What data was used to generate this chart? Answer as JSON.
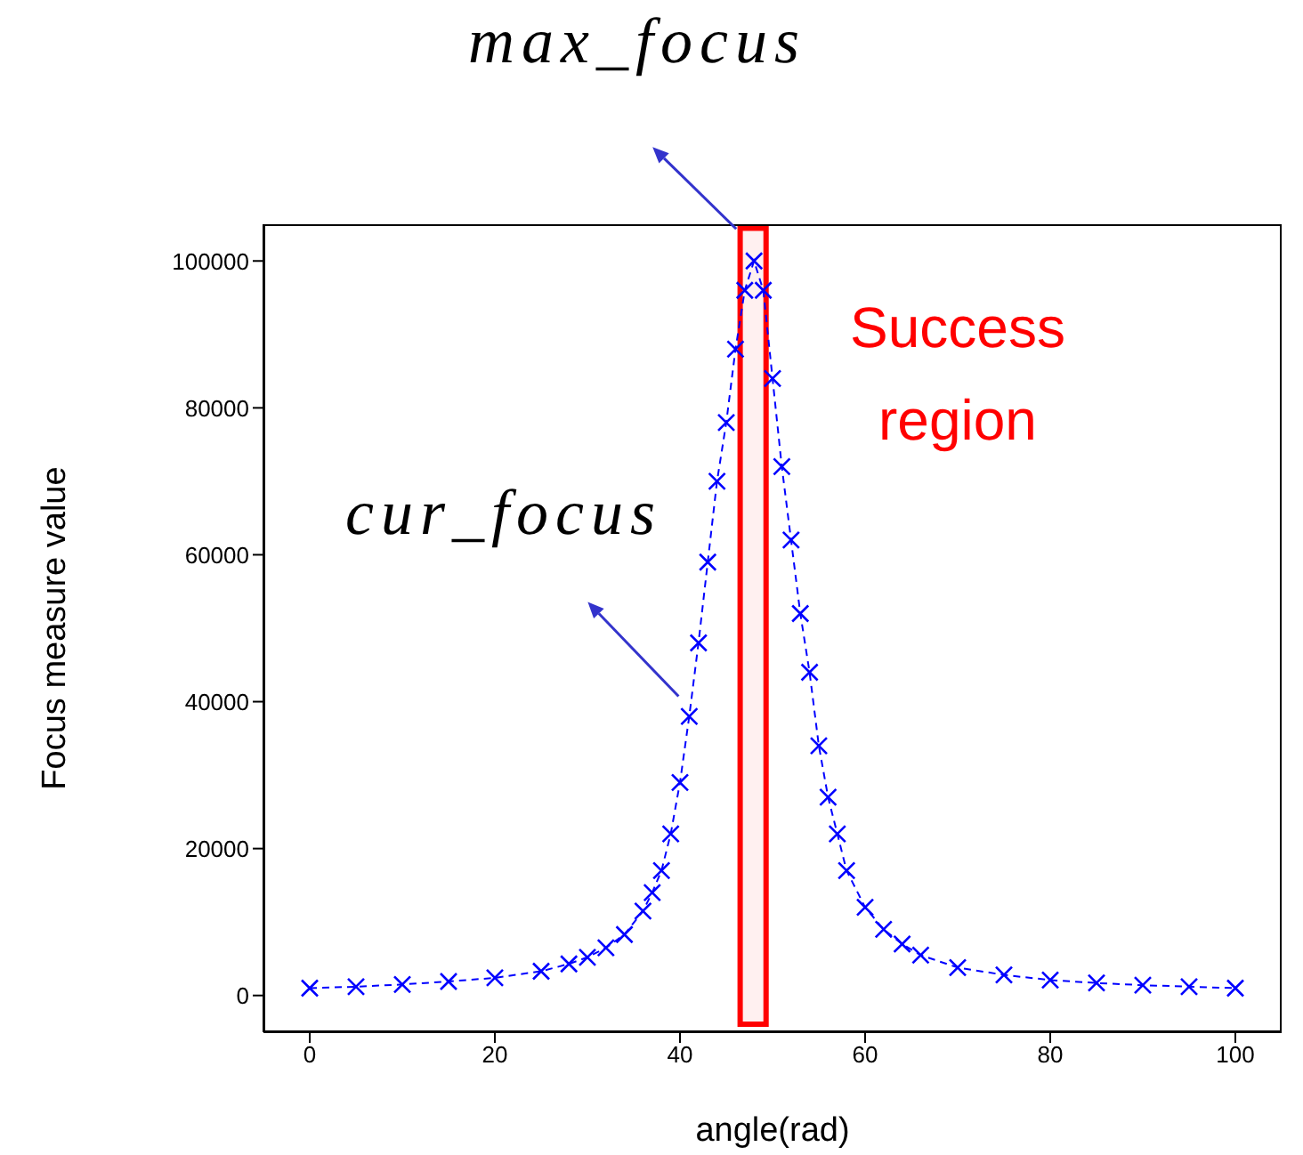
{
  "chart_data": {
    "type": "line",
    "xlabel": "angle(rad)",
    "ylabel": "Focus measure value",
    "x": [
      0,
      5,
      10,
      15,
      20,
      25,
      28,
      30,
      32,
      34,
      36,
      37,
      38,
      39,
      40,
      41,
      42,
      43,
      44,
      45,
      46,
      47,
      48,
      49,
      50,
      51,
      52,
      53,
      54,
      55,
      56,
      57,
      58,
      60,
      62,
      64,
      66,
      70,
      75,
      80,
      85,
      90,
      95,
      100
    ],
    "series": [
      {
        "color": "#0000ff",
        "values": [
          1000,
          1200,
          1500,
          1900,
          2400,
          3300,
          4300,
          5200,
          6500,
          8300,
          11500,
          14000,
          17000,
          22000,
          29000,
          38000,
          48000,
          59000,
          70000,
          78000,
          88000,
          96000,
          100000,
          96000,
          84000,
          72000,
          62000,
          52000,
          44000,
          34000,
          27000,
          22000,
          17000,
          12000,
          9000,
          7000,
          5500,
          3800,
          2800,
          2100,
          1700,
          1400,
          1200,
          1000
        ]
      }
    ],
    "xlim": [
      -5,
      105
    ],
    "ylim": [
      -5000,
      105000
    ],
    "xticks": [
      0,
      20,
      40,
      60,
      80,
      100
    ],
    "yticks": [
      0,
      20000,
      40000,
      60000,
      80000,
      100000
    ],
    "marker": "cross",
    "line_style": "dashed",
    "grid": false,
    "legend": false,
    "bands": [
      {
        "axis": "x",
        "from": 46.5,
        "to": 49.3,
        "label": "Success region",
        "color": "#ff0000"
      }
    ],
    "annotations": [
      {
        "text": "max_focus",
        "x": 48,
        "y": 100000
      },
      {
        "text": "cur_focus",
        "x": 41,
        "y": 40000
      }
    ]
  }
}
